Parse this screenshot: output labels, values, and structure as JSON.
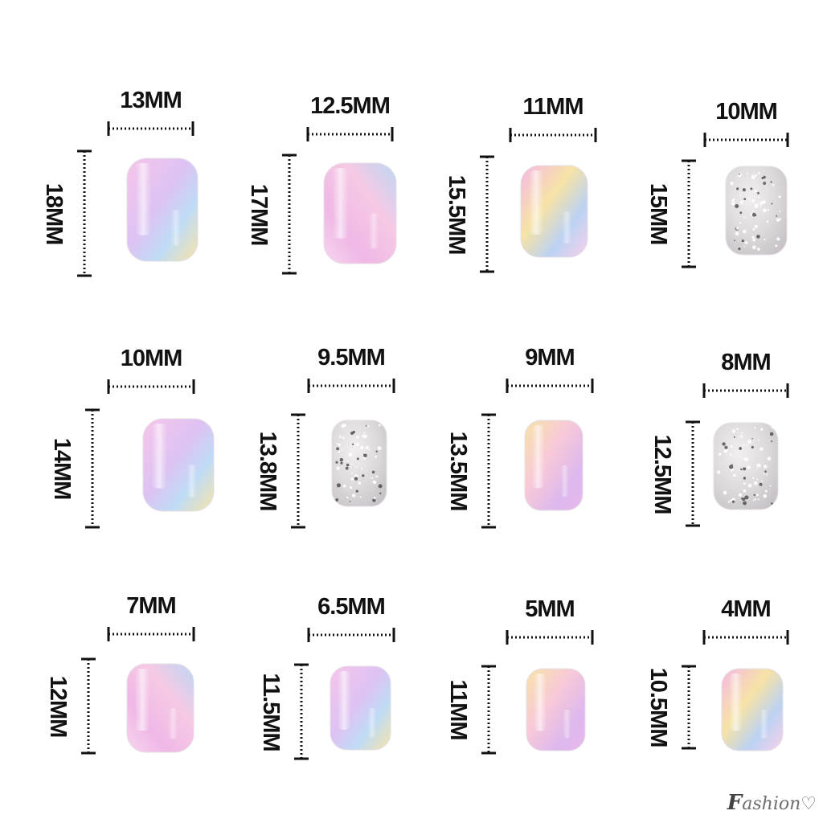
{
  "nails": [
    {
      "width": "13MM",
      "length": "18MM",
      "style": "pastel-rainbow"
    },
    {
      "width": "12.5MM",
      "length": "17MM",
      "style": "pastel-rainbow"
    },
    {
      "width": "11MM",
      "length": "15.5MM",
      "style": "pastel-rainbow"
    },
    {
      "width": "10MM",
      "length": "15MM",
      "style": "silver-glitter"
    },
    {
      "width": "10MM",
      "length": "14MM",
      "style": "pastel-rainbow"
    },
    {
      "width": "9.5MM",
      "length": "13.8MM",
      "style": "silver-glitter"
    },
    {
      "width": "9MM",
      "length": "13.5MM",
      "style": "pastel-rainbow"
    },
    {
      "width": "8MM",
      "length": "12.5MM",
      "style": "silver-glitter"
    },
    {
      "width": "7MM",
      "length": "12MM",
      "style": "pastel-rainbow"
    },
    {
      "width": "6.5MM",
      "length": "11.5MM",
      "style": "pastel-rainbow"
    },
    {
      "width": "5MM",
      "length": "11MM",
      "style": "pastel-rainbow"
    },
    {
      "width": "4MM",
      "length": "10.5MM",
      "style": "pastel-rainbow"
    }
  ],
  "colors": {
    "ink": "#111111",
    "pink": "#f4b8e6",
    "lilac": "#d9b8f2",
    "blue": "#bcd8f4",
    "yellow": "#f7e2a8",
    "peach": "#f9d2c4",
    "glitter": "#d9d6d8"
  },
  "watermark": "Fashion"
}
